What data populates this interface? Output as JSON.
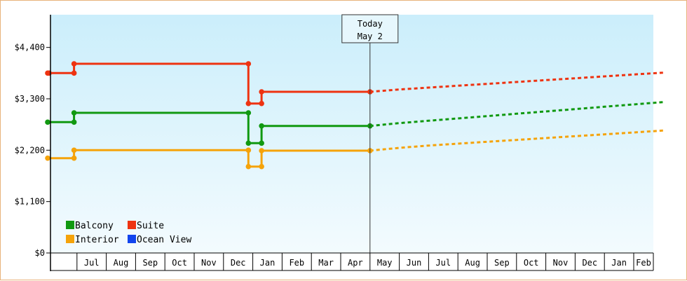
{
  "chart_data": {
    "type": "line",
    "x_months": [
      "Jun",
      "Jul",
      "Aug",
      "Sep",
      "Oct",
      "Nov",
      "Dec",
      "Jan",
      "Feb",
      "Mar",
      "Apr",
      "May",
      "Jun",
      "Jul",
      "Aug",
      "Sep",
      "Oct",
      "Nov",
      "Dec",
      "Jan",
      "Feb",
      "Mar"
    ],
    "x_tick_labels": [
      "Jul",
      "Aug",
      "Sep",
      "Oct",
      "Nov",
      "Dec",
      "Jan",
      "Feb",
      "Mar",
      "Apr",
      "May",
      "Jun",
      "Jul",
      "Aug",
      "Sep",
      "Oct",
      "Nov",
      "Dec",
      "Jan",
      "Feb"
    ],
    "y_ticks": [
      0,
      1100,
      2200,
      3300,
      4400
    ],
    "y_tick_labels": [
      "$0",
      "$1,100",
      "$2,200",
      "$3,300",
      "$4,400"
    ],
    "ylim": [
      0,
      5100
    ],
    "grid": false,
    "legend_placement": "bottom-left",
    "today_marker": {
      "line1": "Today",
      "line2": "May 2",
      "x": 11.0
    },
    "series": [
      {
        "name": "Suite",
        "color": "#ee3311",
        "points": [
          [
            0.0,
            3850
          ],
          [
            0.05,
            3850
          ],
          [
            0.9,
            3850
          ],
          [
            0.9,
            4050
          ],
          [
            6.85,
            4050
          ],
          [
            6.85,
            3200
          ],
          [
            7.3,
            3200
          ],
          [
            7.3,
            3450
          ],
          [
            11.0,
            3450
          ]
        ],
        "forecast": [
          [
            11.0,
            3450
          ],
          [
            12.0,
            3500
          ],
          [
            13.0,
            3540
          ],
          [
            14.0,
            3580
          ],
          [
            15.0,
            3620
          ],
          [
            16.0,
            3660
          ],
          [
            17.0,
            3700
          ],
          [
            18.0,
            3740
          ],
          [
            19.0,
            3780
          ],
          [
            20.0,
            3820
          ],
          [
            21.0,
            3860
          ]
        ]
      },
      {
        "name": "Balcony",
        "color": "#119911",
        "points": [
          [
            0.0,
            2800
          ],
          [
            0.9,
            2800
          ],
          [
            0.9,
            3000
          ],
          [
            6.85,
            3000
          ],
          [
            6.85,
            2350
          ],
          [
            7.3,
            2350
          ],
          [
            7.3,
            2720
          ],
          [
            11.0,
            2720
          ]
        ],
        "forecast": [
          [
            11.0,
            2720
          ],
          [
            12.0,
            2780
          ],
          [
            13.0,
            2830
          ],
          [
            14.0,
            2880
          ],
          [
            15.0,
            2930
          ],
          [
            16.0,
            2980
          ],
          [
            17.0,
            3030
          ],
          [
            18.0,
            3080
          ],
          [
            19.0,
            3130
          ],
          [
            20.0,
            3180
          ],
          [
            21.0,
            3230
          ]
        ]
      },
      {
        "name": "Interior",
        "color": "#f5a30a",
        "points": [
          [
            0.0,
            2030
          ],
          [
            0.9,
            2030
          ],
          [
            0.9,
            2200
          ],
          [
            6.85,
            2200
          ],
          [
            6.85,
            1850
          ],
          [
            7.3,
            1850
          ],
          [
            7.3,
            2190
          ],
          [
            11.0,
            2190
          ]
        ],
        "forecast": [
          [
            11.0,
            2190
          ],
          [
            12.0,
            2250
          ],
          [
            13.0,
            2300
          ],
          [
            14.0,
            2340
          ],
          [
            15.0,
            2380
          ],
          [
            16.0,
            2420
          ],
          [
            17.0,
            2460
          ],
          [
            18.0,
            2500
          ],
          [
            19.0,
            2540
          ],
          [
            20.0,
            2580
          ],
          [
            21.0,
            2620
          ]
        ]
      },
      {
        "name": "Ocean View",
        "color": "#1144ee",
        "points": [],
        "forecast": []
      }
    ],
    "legend": [
      {
        "name": "Balcony",
        "color": "#119911"
      },
      {
        "name": "Suite",
        "color": "#ee3311"
      },
      {
        "name": "Interior",
        "color": "#f5a30a"
      },
      {
        "name": "Ocean View",
        "color": "#1144ee"
      }
    ]
  }
}
